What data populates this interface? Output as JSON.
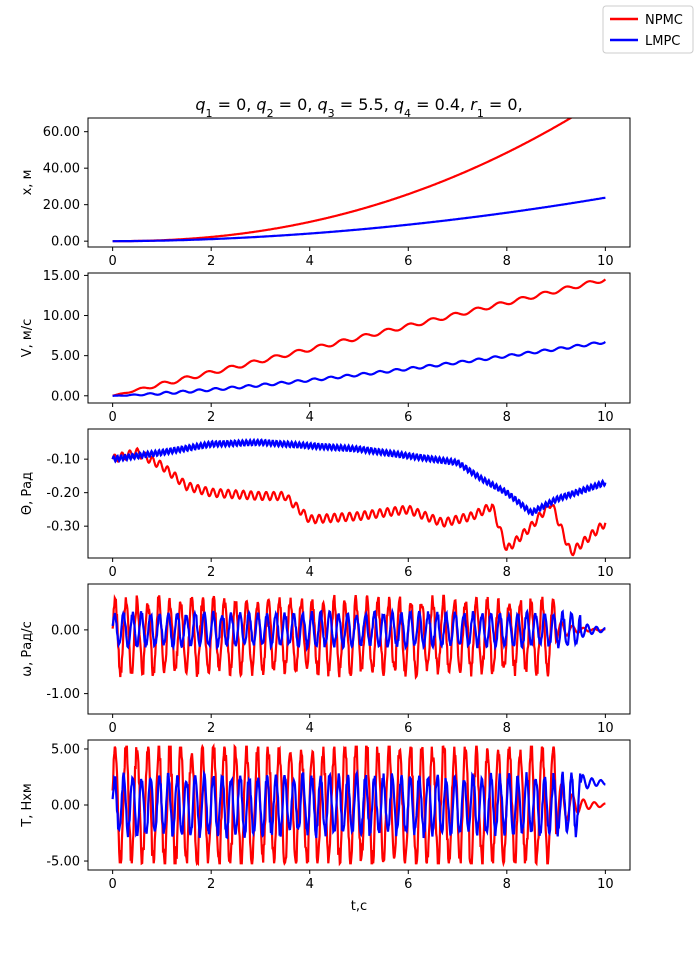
{
  "chart_data": {
    "type": "line",
    "title": "q1 = 0, q2 = 0, q3 = 5.5, q4 = 0.4, r1 = 0,",
    "title_parts": [
      {
        "sym": "q",
        "sub": "1",
        "rest": " = 0, "
      },
      {
        "sym": "q",
        "sub": "2",
        "rest": " = 0, "
      },
      {
        "sym": "q",
        "sub": "3",
        "rest": " = 5.5, "
      },
      {
        "sym": "q",
        "sub": "4",
        "rest": " = 0.4, "
      },
      {
        "sym": "r",
        "sub": "1",
        "rest": " = 0,"
      }
    ],
    "xlabel": "t,c",
    "xlim": [
      -0.5,
      10.5
    ],
    "xticks": [
      0,
      2,
      4,
      6,
      8,
      10
    ],
    "legend": {
      "placement": "top-right",
      "entries": [
        {
          "name": "NPMC",
          "color": "#ff0000"
        },
        {
          "name": "LMPC",
          "color": "#0000ff"
        }
      ]
    },
    "subplots": [
      {
        "id": "x",
        "ylabel": "x, м",
        "ylim": [
          -3.2,
          67.5
        ],
        "yticks": [
          0,
          20,
          40,
          60
        ],
        "ytick_labels": [
          "0.00",
          "20.00",
          "40.00",
          "60.00"
        ],
        "series": [
          {
            "name": "NPMC",
            "color": "#ff0000",
            "gen": "poly",
            "a": 0.5,
            "p": 2.2,
            "noise": 0
          },
          {
            "name": "LMPC",
            "color": "#0000ff",
            "gen": "poly",
            "a": 0.3,
            "p": 1.9,
            "noise": 0
          }
        ]
      },
      {
        "id": "v",
        "ylabel": "V, м/с",
        "ylim": [
          -0.9,
          15.3
        ],
        "yticks": [
          0,
          5,
          10,
          15
        ],
        "ytick_labels": [
          "0.00",
          "5.00",
          "10.00",
          "15.00"
        ],
        "series": [
          {
            "name": "NPMC",
            "color": "#ff0000",
            "gen": "ramp",
            "start": 0,
            "end": 14.5,
            "p": 1.0,
            "osc": 0.25,
            "freq": 22
          },
          {
            "name": "LMPC",
            "color": "#0000ff",
            "gen": "ramp",
            "start": 0,
            "end": 6.7,
            "p": 1.35,
            "osc": 0.15,
            "freq": 30
          }
        ]
      },
      {
        "id": "theta",
        "ylabel": "Θ, Рад",
        "ylim": [
          -0.395,
          -0.01
        ],
        "yticks": [
          -0.1,
          -0.2,
          -0.3
        ],
        "ytick_labels": [
          "-0.10",
          "-0.20",
          "-0.30"
        ],
        "series": [
          {
            "name": "NPMC",
            "color": "#ff0000",
            "gen": "interp",
            "knots": [
              [
                0,
                -0.1
              ],
              [
                0.5,
                -0.08
              ],
              [
                1,
                -0.12
              ],
              [
                1.5,
                -0.18
              ],
              [
                2,
                -0.2
              ],
              [
                3,
                -0.21
              ],
              [
                3.5,
                -0.21
              ],
              [
                4,
                -0.28
              ],
              [
                5,
                -0.27
              ],
              [
                6,
                -0.25
              ],
              [
                6.7,
                -0.29
              ],
              [
                7.3,
                -0.27
              ],
              [
                7.7,
                -0.24
              ],
              [
                8,
                -0.37
              ],
              [
                8.5,
                -0.3
              ],
              [
                8.9,
                -0.23
              ],
              [
                9.3,
                -0.38
              ],
              [
                10,
                -0.29
              ]
            ],
            "osc": 0.012,
            "freq": 13
          },
          {
            "name": "LMPC",
            "color": "#0000ff",
            "gen": "interp",
            "knots": [
              [
                0,
                -0.1
              ],
              [
                1,
                -0.08
              ],
              [
                2,
                -0.055
              ],
              [
                3,
                -0.05
              ],
              [
                4,
                -0.06
              ],
              [
                5,
                -0.07
              ],
              [
                6,
                -0.09
              ],
              [
                7,
                -0.11
              ],
              [
                7.5,
                -0.16
              ],
              [
                8,
                -0.2
              ],
              [
                8.5,
                -0.26
              ],
              [
                9,
                -0.22
              ],
              [
                10,
                -0.17
              ]
            ],
            "osc": 0.008,
            "freq": 26
          }
        ]
      },
      {
        "id": "omega",
        "ylabel": "ω, Рад/с",
        "ylim": [
          -1.32,
          0.72
        ],
        "yticks": [
          0,
          -1
        ],
        "ytick_labels": [
          "0.00",
          "-1.00"
        ],
        "series": [
          {
            "name": "NPMC",
            "color": "#ff0000",
            "gen": "osc",
            "base": -0.1,
            "amp": 0.55,
            "freq": 4.5,
            "stop": 9.0,
            "tail": 0.0
          },
          {
            "name": "LMPC",
            "color": "#0000ff",
            "gen": "osc",
            "base": 0.0,
            "amp": 0.25,
            "freq": 5.5,
            "stop": 9.5,
            "tail": 0.0
          }
        ]
      },
      {
        "id": "torque",
        "ylabel": "T, Нхм",
        "ylim": [
          -5.8,
          5.8
        ],
        "yticks": [
          5,
          0,
          -5
        ],
        "ytick_labels": [
          "5.00",
          "0.00",
          "-5.00"
        ],
        "series": [
          {
            "name": "NPMC",
            "color": "#ff0000",
            "gen": "osc",
            "base": 0,
            "amp": 5.2,
            "freq": 4.5,
            "stop": 9.0,
            "tail": 0.0,
            "clip": 5.2
          },
          {
            "name": "LMPC",
            "color": "#0000ff",
            "gen": "osc",
            "base": 0,
            "amp": 2.5,
            "freq": 5.5,
            "stop": 9.5,
            "tail": 2.0,
            "clip": 5.2
          }
        ]
      }
    ]
  }
}
